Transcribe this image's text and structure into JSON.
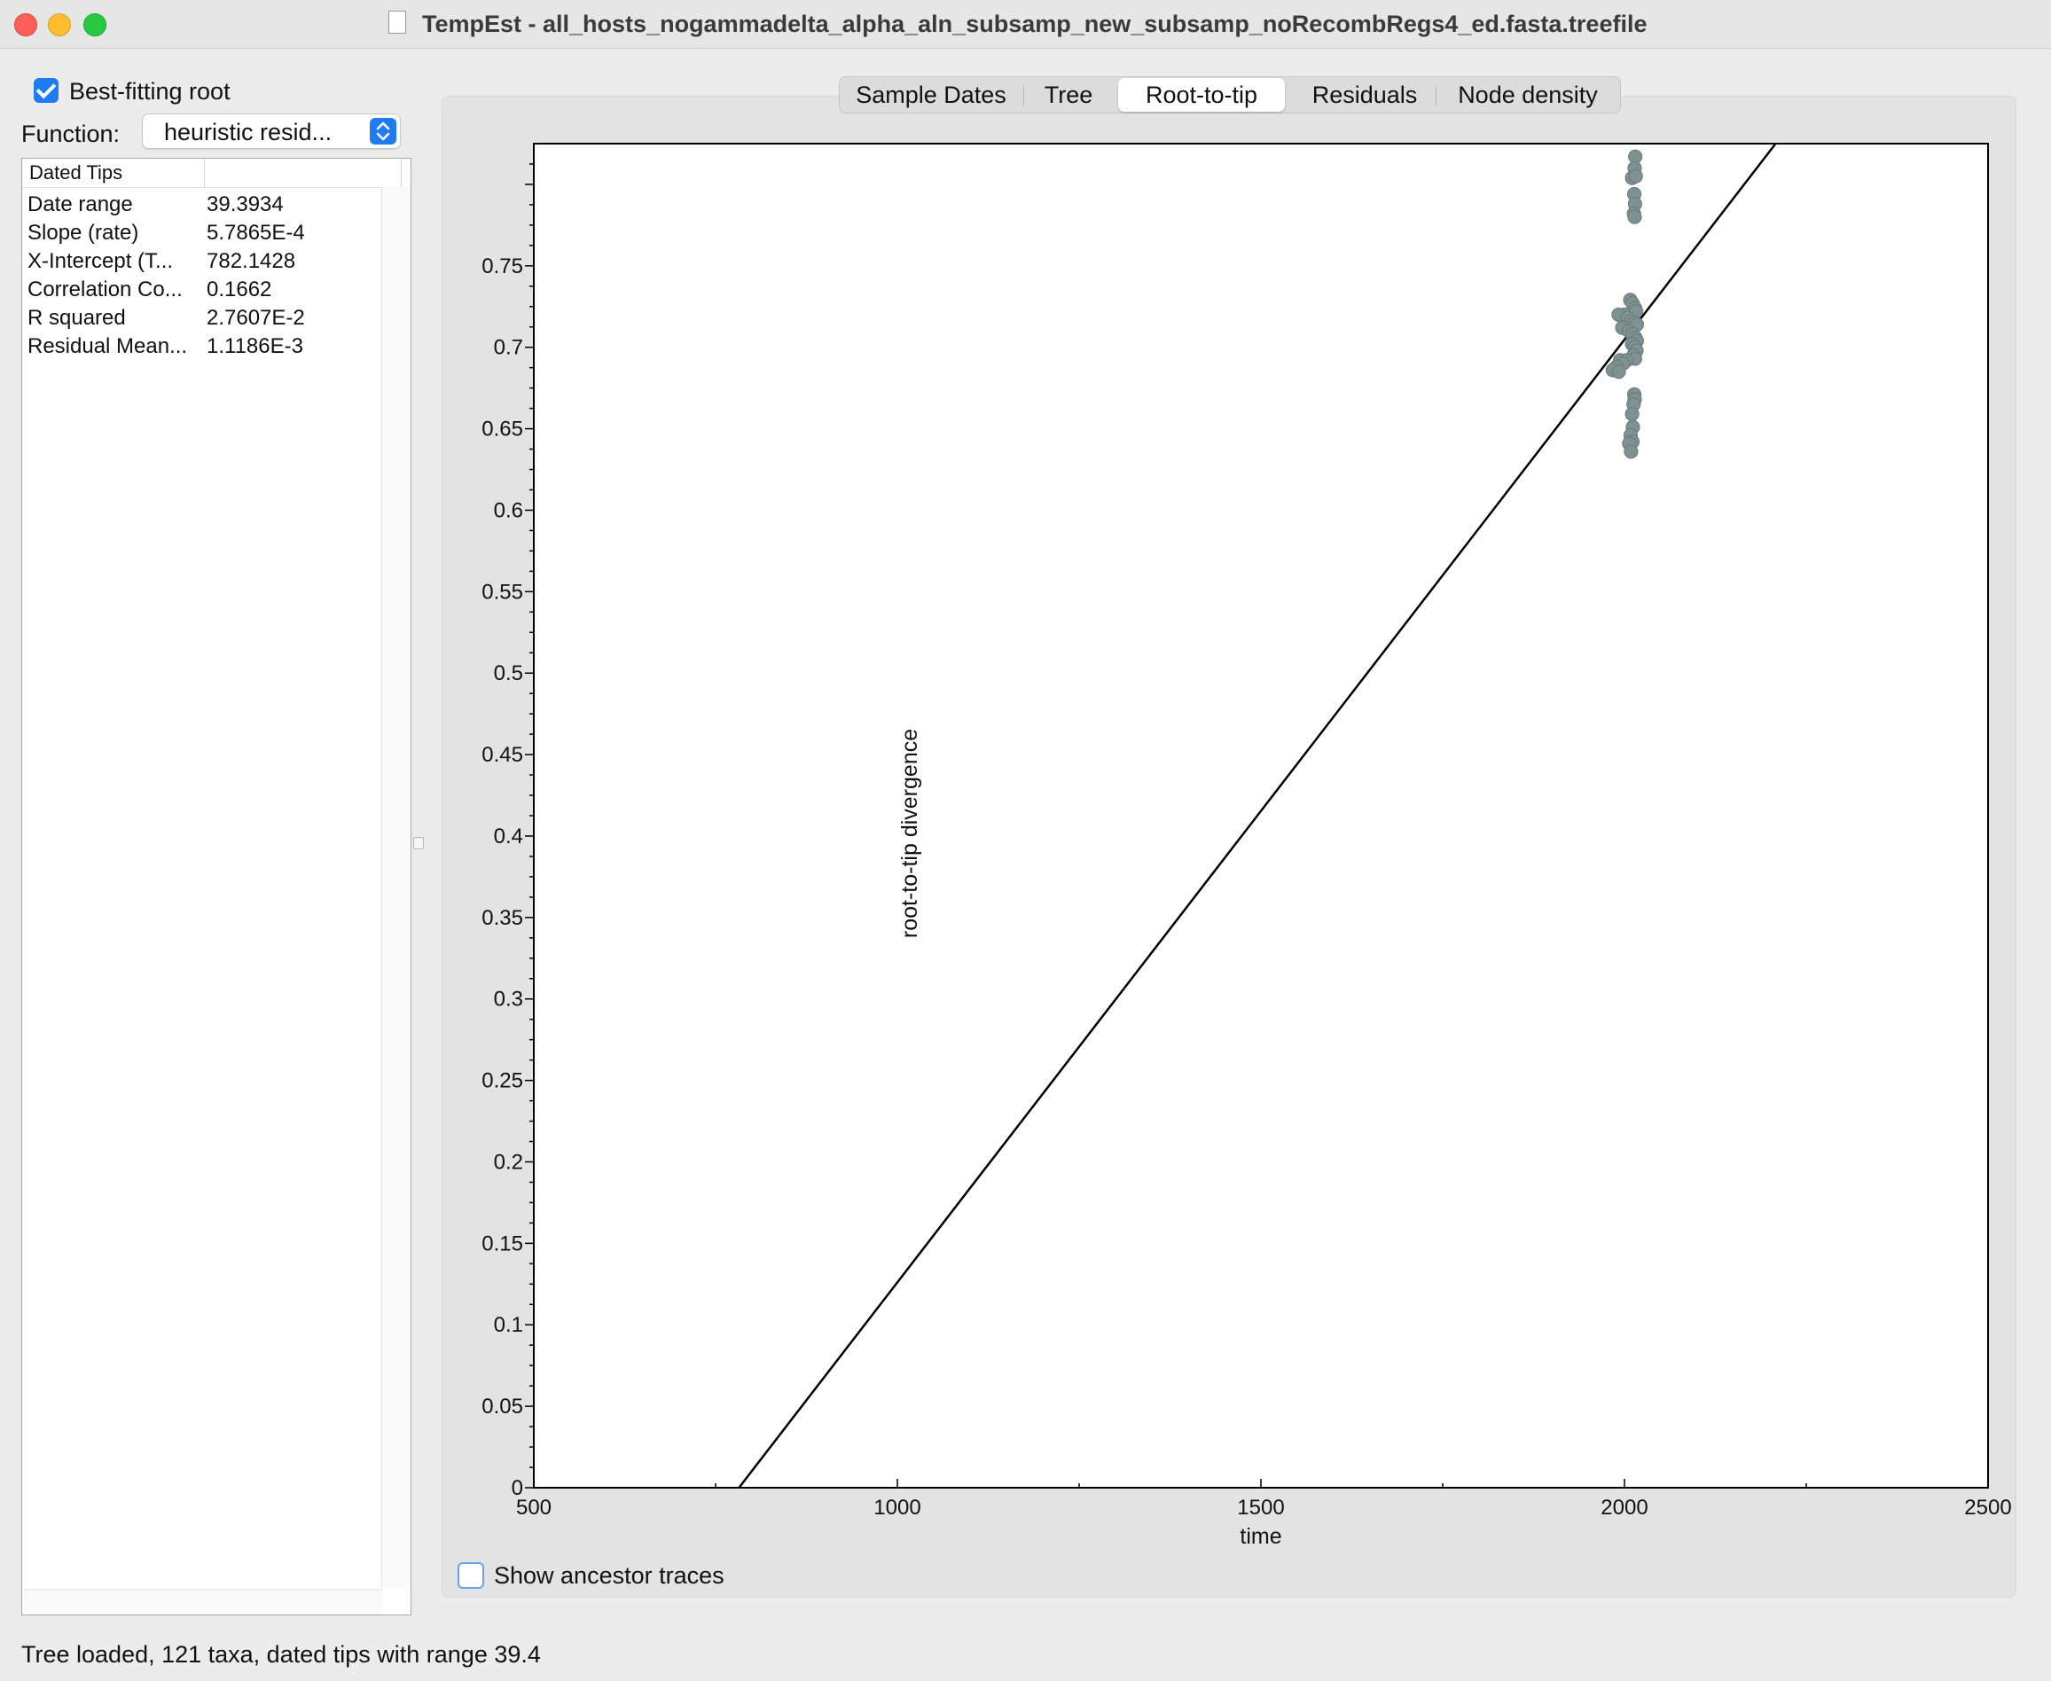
{
  "window": {
    "title": "TempEst - all_hosts_nogammadelta_alpha_aln_subsamp_new_subsamp_noRecombRegs4_ed.fasta.treefile"
  },
  "controls": {
    "best_fitting_root_label": "Best-fitting root",
    "best_fitting_root_checked": true,
    "function_label": "Function:",
    "function_value": "heuristic resid..."
  },
  "table": {
    "headers": [
      "Dated Tips",
      ""
    ],
    "rows": [
      {
        "label": "Date range",
        "value": "39.3934"
      },
      {
        "label": "Slope (rate)",
        "value": "5.7865E-4"
      },
      {
        "label": "X-Intercept (T...",
        "value": "782.1428"
      },
      {
        "label": "Correlation Co...",
        "value": "0.1662"
      },
      {
        "label": "R squared",
        "value": "2.7607E-2"
      },
      {
        "label": "Residual Mean...",
        "value": "1.1186E-3"
      }
    ]
  },
  "tabs": [
    {
      "label": "Sample Dates",
      "active": false
    },
    {
      "label": "Tree",
      "active": false
    },
    {
      "label": "Root-to-tip",
      "active": true
    },
    {
      "label": "Residuals",
      "active": false
    },
    {
      "label": "Node density",
      "active": false
    }
  ],
  "ancestor": {
    "label": "Show ancestor traces",
    "checked": false
  },
  "status": "Tree loaded, 121 taxa, dated tips with range 39.4",
  "colors": {
    "accent": "#1e7cf2",
    "point": "#7f9292",
    "point_outline": "#6c7e7e",
    "line": "#000000"
  },
  "chart_data": {
    "type": "scatter",
    "xlabel": "time",
    "ylabel": "root-to-tip divergence",
    "xlim": [
      500,
      2500
    ],
    "ylim": [
      0,
      0.825
    ],
    "xticks": [
      "500",
      "1000",
      "1500",
      "2000",
      "2500"
    ],
    "xtick_values": [
      500,
      1000,
      1500,
      2000,
      2500
    ],
    "yticks": [
      "0",
      "0.05",
      "0.1",
      "0.15",
      "0.2",
      "0.25",
      "0.3",
      "0.35",
      "0.4",
      "0.45",
      "0.5",
      "0.55",
      "0.6",
      "0.65",
      "0.7",
      "0.75"
    ],
    "ytick_values": [
      0,
      0.05,
      0.1,
      0.15,
      0.2,
      0.25,
      0.3,
      0.35,
      0.4,
      0.45,
      0.5,
      0.55,
      0.6,
      0.65,
      0.7,
      0.75
    ],
    "regression_line": {
      "x_intercept": 782.1428,
      "slope": 0.00057865
    },
    "points": [
      {
        "x": 2014.8,
        "y": 0.817
      },
      {
        "x": 2014.0,
        "y": 0.81
      },
      {
        "x": 2010.5,
        "y": 0.804
      },
      {
        "x": 2015.5,
        "y": 0.805
      },
      {
        "x": 2013.5,
        "y": 0.794
      },
      {
        "x": 2014.5,
        "y": 0.788
      },
      {
        "x": 2013.0,
        "y": 0.782
      },
      {
        "x": 2014.0,
        "y": 0.78
      },
      {
        "x": 2008.0,
        "y": 0.729
      },
      {
        "x": 2011.0,
        "y": 0.727
      },
      {
        "x": 2014.5,
        "y": 0.724
      },
      {
        "x": 2016.0,
        "y": 0.722
      },
      {
        "x": 2000.0,
        "y": 0.72
      },
      {
        "x": 1992.0,
        "y": 0.72
      },
      {
        "x": 2004.0,
        "y": 0.718
      },
      {
        "x": 2009.0,
        "y": 0.716
      },
      {
        "x": 2013.5,
        "y": 0.715
      },
      {
        "x": 2017.0,
        "y": 0.714
      },
      {
        "x": 1997.0,
        "y": 0.712
      },
      {
        "x": 2006.0,
        "y": 0.71
      },
      {
        "x": 2011.0,
        "y": 0.708
      },
      {
        "x": 2015.0,
        "y": 0.706
      },
      {
        "x": 2017.0,
        "y": 0.704
      },
      {
        "x": 2010.5,
        "y": 0.702
      },
      {
        "x": 2014.0,
        "y": 0.7
      },
      {
        "x": 2016.5,
        "y": 0.698
      },
      {
        "x": 2012.5,
        "y": 0.695
      },
      {
        "x": 2014.5,
        "y": 0.693
      },
      {
        "x": 1994.0,
        "y": 0.692
      },
      {
        "x": 2003.0,
        "y": 0.692
      },
      {
        "x": 1998.0,
        "y": 0.69
      },
      {
        "x": 1989.0,
        "y": 0.688
      },
      {
        "x": 1984.0,
        "y": 0.686
      },
      {
        "x": 1992.0,
        "y": 0.685
      },
      {
        "x": 2013.5,
        "y": 0.671
      },
      {
        "x": 2014.0,
        "y": 0.668
      },
      {
        "x": 2012.5,
        "y": 0.665
      },
      {
        "x": 2010.5,
        "y": 0.659
      },
      {
        "x": 2011.5,
        "y": 0.651
      },
      {
        "x": 2008.5,
        "y": 0.646
      },
      {
        "x": 2011.0,
        "y": 0.642
      },
      {
        "x": 2006.5,
        "y": 0.641
      },
      {
        "x": 2009.0,
        "y": 0.636
      }
    ]
  }
}
